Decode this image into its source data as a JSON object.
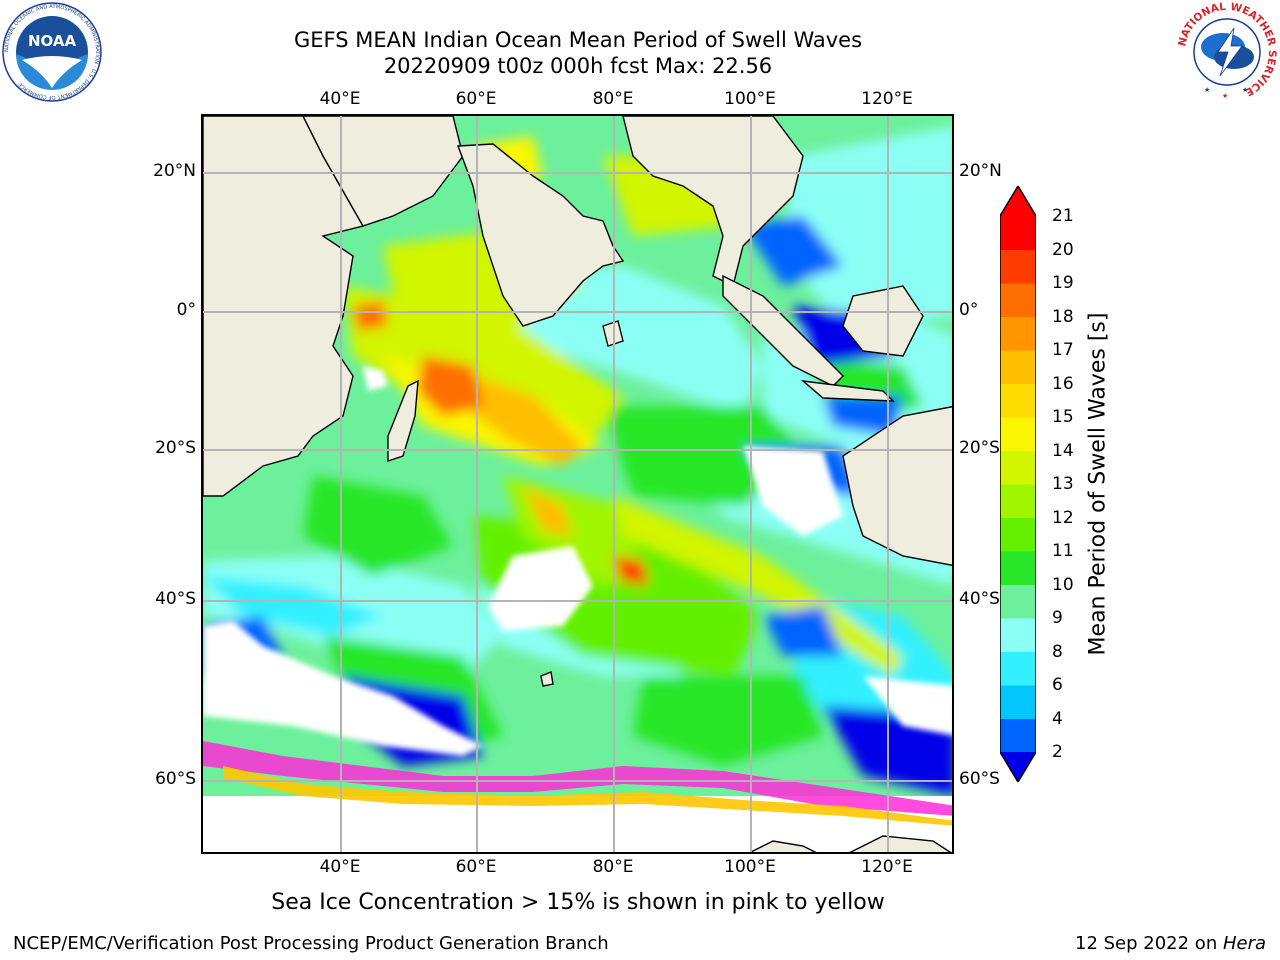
{
  "header": {
    "title_line1": "GEFS MEAN Indian Ocean Mean Period of Swell Waves",
    "title_line2": "20220909 t00z 000h fcst    Max: 22.56"
  },
  "map": {
    "top_lon_labels": [
      "40°E",
      "60°E",
      "80°E",
      "100°E",
      "120°E"
    ],
    "bottom_lon_labels": [
      "40°E",
      "60°E",
      "80°E",
      "100°E",
      "120°E"
    ],
    "left_lat_labels": [
      "20°N",
      "0°",
      "20°S",
      "40°S",
      "60°S"
    ],
    "right_lat_labels": [
      "20°N",
      "0°",
      "20°S",
      "40°S",
      "60°S"
    ],
    "land_color": "#efedde",
    "grid_color": "#b4b4b4"
  },
  "colorbar": {
    "label": "Mean Period of Swell Waves [s]",
    "ticks": [
      "2",
      "4",
      "6",
      "8",
      "9",
      "10",
      "11",
      "12",
      "13",
      "14",
      "15",
      "16",
      "17",
      "18",
      "19",
      "20",
      "21"
    ],
    "colors": [
      "#0000e8",
      "#0064ff",
      "#00c8ff",
      "#32f0ff",
      "#8cfff5",
      "#6cf09c",
      "#28e628",
      "#64f000",
      "#a0f500",
      "#d2f500",
      "#faf500",
      "#ffdc00",
      "#ffbe00",
      "#ff9600",
      "#ff6e00",
      "#ff3c00",
      "#ff0000"
    ]
  },
  "note": "Sea Ice Concentration > 15% is shown in pink to yellow",
  "footer": {
    "left": "NCEP/EMC/Verification Post Processing Product Generation Branch",
    "right_date": "12 Sep 2022 on ",
    "right_machine": "Hera"
  },
  "logos": {
    "noaa_text": "NOAA",
    "noaa_ring_text": "NATIONAL OCEANIC AND ATMOSPHERIC ADMINISTRATION · U.S. DEPARTMENT OF COMMERCE",
    "nws_ring_text": "NATIONAL WEATHER SERVICE"
  }
}
